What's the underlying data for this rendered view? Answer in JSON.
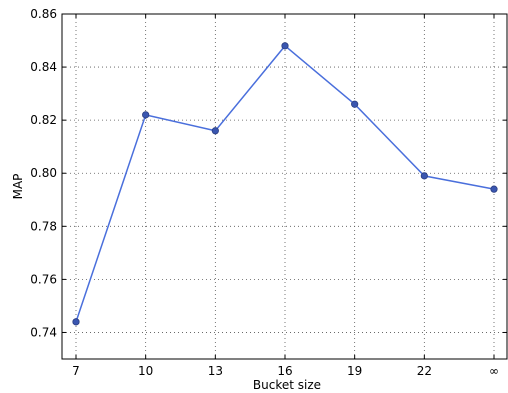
{
  "chart_data": {
    "type": "line",
    "title": "",
    "xlabel": "Bucket size",
    "ylabel": "MAP",
    "categories": [
      "7",
      "10",
      "13",
      "16",
      "19",
      "22",
      "∞"
    ],
    "series": [
      {
        "values": [
          0.744,
          0.822,
          0.816,
          0.848,
          0.826,
          0.799,
          0.794
        ]
      }
    ],
    "ylim": [
      0.73,
      0.86
    ],
    "yticks": [
      "0.74",
      "0.76",
      "0.78",
      "0.80",
      "0.82",
      "0.84",
      "0.86"
    ],
    "grid": true,
    "line_color": "#4a6fdc",
    "marker_color": "#3a56b0"
  }
}
